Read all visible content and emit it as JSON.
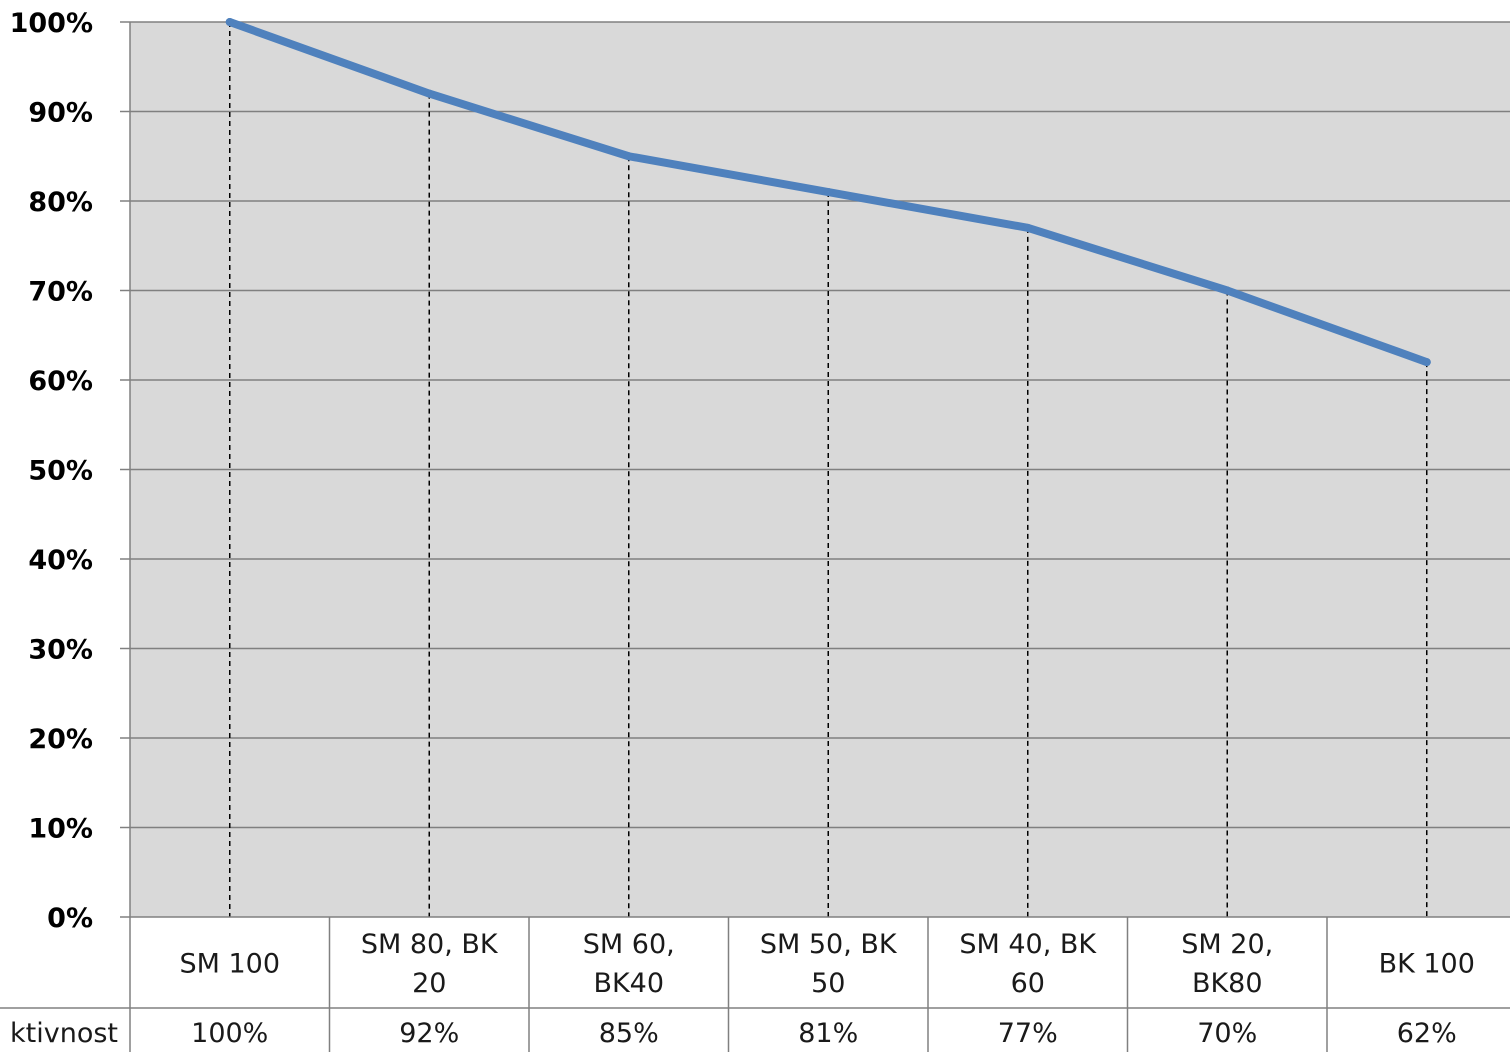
{
  "chart_data": {
    "type": "line",
    "categories": [
      "SM 100",
      "SM 80, BK 20",
      "SM 60, BK40",
      "SM 50, BK 50",
      "SM 40, BK 60",
      "SM 20, BK80",
      "BK 100"
    ],
    "category_lines": [
      [
        "SM 100"
      ],
      [
        "SM 80, BK",
        "20"
      ],
      [
        "SM 60,",
        "BK40"
      ],
      [
        "SM 50, BK",
        "50"
      ],
      [
        "SM 40, BK",
        "60"
      ],
      [
        "SM 20,",
        "BK80"
      ],
      [
        "BK 100"
      ]
    ],
    "series": [
      {
        "name": "ktivnost",
        "values": [
          100,
          92,
          85,
          81,
          77,
          70,
          62
        ],
        "color": "#4f81bd"
      }
    ],
    "data_table_values": [
      "100%",
      "92%",
      "85%",
      "81%",
      "77%",
      "70%",
      "62%"
    ],
    "ylim": [
      0,
      100
    ],
    "yticks": [
      "0%",
      "10%",
      "20%",
      "30%",
      "40%",
      "50%",
      "60%",
      "70%",
      "80%",
      "90%",
      "100%"
    ],
    "drop_lines": true,
    "grid": true,
    "legend": "data table",
    "plot_background": "#d9d9d9",
    "gridline_color": "#808080",
    "data_table_border_color": "#808080"
  }
}
